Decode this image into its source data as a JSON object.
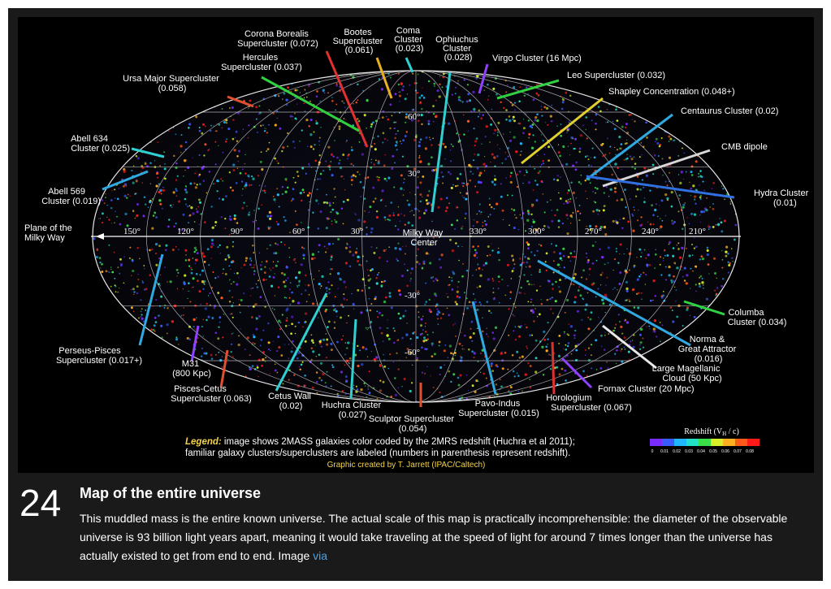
{
  "item": {
    "number": "24",
    "title": "Map of the entire universe",
    "description": "This muddled mass is the entire known universe. The actual scale of this map is practically incomprehensible: the diameter of the observable universe is 93 billion light years apart, meaning it would take traveling at the speed of light for around 7 times longer than the universe has actually existed to get from end to end. Image ",
    "link_text": "via"
  },
  "map": {
    "labels": {
      "corona_borealis": [
        "Corona Borealis",
        "Supercluster (0.072)"
      ],
      "bootes": [
        "Bootes",
        "Supercluster",
        "(0.061)"
      ],
      "coma": [
        "Coma",
        "Cluster",
        "(0.023)"
      ],
      "ophiuchus": [
        "Ophiuchus",
        "Cluster",
        "(0.028)"
      ],
      "virgo": [
        "Virgo Cluster (16 Mpc)"
      ],
      "hercules": [
        "Hercules",
        "Supercluster (0.037)"
      ],
      "leo": [
        "Leo Supercluster (0.032)"
      ],
      "ursa_major": [
        "Ursa Major Supercluster",
        "(0.058)"
      ],
      "shapley": [
        "Shapley Concentration (0.048+)"
      ],
      "centaurus": [
        "Centaurus Cluster (0.02)"
      ],
      "abell634": [
        "Abell 634",
        "Cluster (0.025)"
      ],
      "cmb": [
        "CMB dipole"
      ],
      "abell569": [
        "Abell 569",
        "Cluster (0.019)"
      ],
      "hydra": [
        "Hydra Cluster",
        "(0.01)"
      ],
      "plane": [
        "Plane of the",
        "Milky Way"
      ],
      "mw_center": [
        "Milky Way",
        "Center"
      ],
      "columba": [
        "Columba",
        "Cluster (0.034)"
      ],
      "norma": [
        "Norma &",
        "Great Attractor",
        "(0.016)"
      ],
      "perseus": [
        "Perseus-Pisces",
        "Supercluster (0.017+)"
      ],
      "m31": [
        "M31",
        "(800 Kpc)"
      ],
      "lmc": [
        "Large Magellanic",
        "Cloud (50 Kpc)"
      ],
      "fornax": [
        "Fornax Cluster (20 Mpc)"
      ],
      "pisces_cetus": [
        "Pisces-Cetus",
        "Supercluster (0.063)"
      ],
      "cetus_wall": [
        "Cetus Wall",
        "(0.02)"
      ],
      "huchra": [
        "Huchra Cluster",
        "(0.027)"
      ],
      "horologium": [
        "Horologium",
        "Supercluster (0.067)"
      ],
      "pavo": [
        "Pavo-Indus",
        "Supercluster (0.015)"
      ],
      "sculptor": [
        "Sculptor Supercluster",
        "(0.054)"
      ]
    },
    "longitudes": [
      "150°",
      "120°",
      "90°",
      "60°",
      "30°",
      "330°",
      "300°",
      "270°",
      "240°",
      "210°"
    ],
    "latitudes": [
      "60°",
      "30°",
      "-30°",
      "-60°"
    ],
    "legend_prefix": "Legend:",
    "legend_line1": " image shows 2MASS galaxies color coded by the 2MRS redshift (Huchra et al 2011);",
    "legend_line2": "familiar galaxy clusters/superclusters are labeled (numbers in parenthesis represent redshift).",
    "credit": "Graphic created by T. Jarrett (IPAC/Caltech)",
    "redshift_title": "Redshift (V",
    "redshift_sub": "H",
    "redshift_title_end": " / c)",
    "redshift_ticks": [
      "0",
      "0.01",
      "0.02",
      "0.03",
      "0.04",
      "0.05",
      "0.06",
      "0.07",
      "0.08"
    ],
    "redshift_colors": [
      "#7a2cff",
      "#3a5cff",
      "#1fb8ff",
      "#22e0c8",
      "#39e04a",
      "#d6ef2a",
      "#ffb020",
      "#ff5a1a",
      "#ff1a1a"
    ]
  }
}
